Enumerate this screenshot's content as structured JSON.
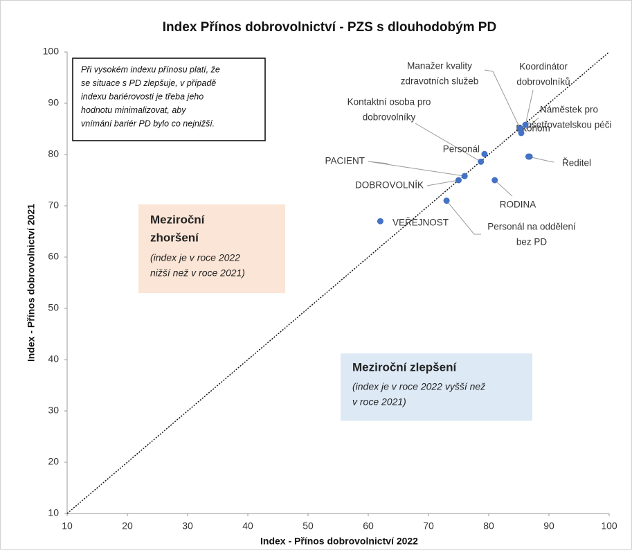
{
  "chart_data": {
    "type": "scatter",
    "title": "Index Přínos dobrovolnictví - PZS s dlouhodobým PD",
    "x_label": "Index - Přínos dobrovolnictví 2022",
    "y_label": "Index - Přínos dobrovolnictví 2021",
    "xlim": [
      10,
      100
    ],
    "ylim": [
      10,
      100
    ],
    "xticks": [
      10,
      20,
      30,
      40,
      50,
      60,
      70,
      80,
      90,
      100
    ],
    "yticks": [
      10,
      20,
      30,
      40,
      50,
      60,
      70,
      80,
      90,
      100
    ],
    "series": [
      {
        "color": "#4472c4",
        "x": [
          62,
          73,
          81,
          75,
          76,
          78.7,
          79.3,
          86.8,
          85.2,
          86.1,
          85.4,
          86.6
        ],
        "values": [
          67,
          71,
          75,
          75,
          75.8,
          78.6,
          80.1,
          79.6,
          85.1,
          85.8,
          84.2,
          79.6
        ],
        "labels": [
          [
            "VEŘEJNOST"
          ],
          [
            "Personál na oddělení",
            "bez PD"
          ],
          [
            "RODINA"
          ],
          [
            "DOBROVOLNÍK"
          ],
          [
            "PACIENT"
          ],
          [
            "Kontaktní osoba pro",
            "dobrovolníky"
          ],
          [
            "Personál"
          ],
          [
            "Ekonom"
          ],
          [
            "Manažer kvality",
            "zdravotních služeb"
          ],
          [
            "Koordinátor",
            "dobrovolníků"
          ],
          [
            "Náměstek pro",
            "ošetřovatelskou péči"
          ],
          [
            "Ředitel"
          ]
        ]
      }
    ],
    "note": [
      "Při vysokém indexu přínosu platí, že",
      "se situace s PD zlepšuje, v případě",
      "indexu bariérovosti je třeba jeho",
      "hodnotu minimalizovat, aby",
      "vnímání bariér PD bylo co nejnižší."
    ],
    "region_worse": {
      "title": [
        "Meziroční",
        "zhoršení"
      ],
      "text": [
        "(index je v roce 2022",
        "nižší než v roce 2021)"
      ]
    },
    "region_better": {
      "title": [
        "Meziroční zlepšení"
      ],
      "text": [
        "(index je v roce 2022 vyšší než",
        "v roce 2021)"
      ]
    }
  }
}
